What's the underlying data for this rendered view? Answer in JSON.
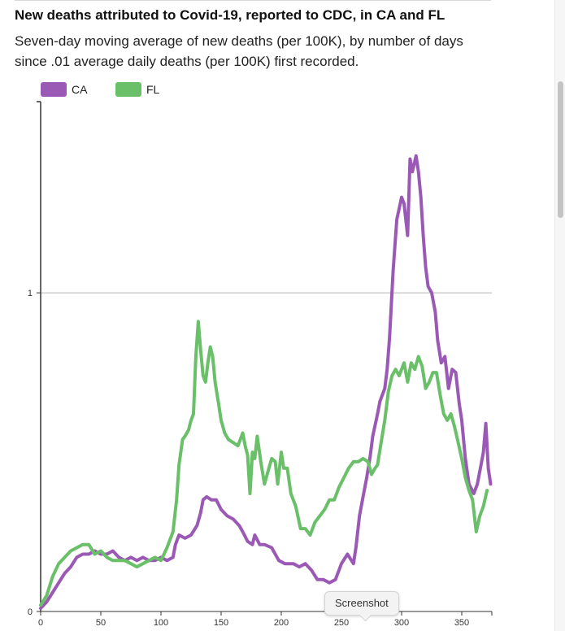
{
  "title": "New deaths attributed to Covid-19, reported to CDC, in CA and FL",
  "subtitle": "Seven-day moving average of new deaths (per 100K), by number of days since .01 average daily deaths (per 100K) first recorded.",
  "tooltip": {
    "label": "Screenshot"
  },
  "colors": {
    "CA": "#9b59b6",
    "FL": "#6abf69",
    "reference_line": "#b5b5b5",
    "axis": "#333333"
  },
  "chart_data": {
    "type": "line",
    "title": "New deaths attributed to Covid-19, reported to CDC, in CA and FL",
    "xlabel": "",
    "ylabel": "",
    "xlim": [
      0,
      375
    ],
    "ylim": [
      0,
      1.6
    ],
    "x_ticks": [
      0,
      50,
      100,
      150,
      200,
      250,
      300,
      350
    ],
    "y_ticks": [
      0,
      1
    ],
    "reference_lines": [
      1
    ],
    "grid": false,
    "legend_position": "top-left",
    "series": [
      {
        "name": "CA",
        "points": [
          [
            0,
            0.01
          ],
          [
            5,
            0.03
          ],
          [
            10,
            0.06
          ],
          [
            15,
            0.09
          ],
          [
            20,
            0.12
          ],
          [
            25,
            0.14
          ],
          [
            30,
            0.17
          ],
          [
            35,
            0.18
          ],
          [
            40,
            0.18
          ],
          [
            45,
            0.19
          ],
          [
            50,
            0.18
          ],
          [
            55,
            0.18
          ],
          [
            60,
            0.19
          ],
          [
            65,
            0.17
          ],
          [
            70,
            0.16
          ],
          [
            75,
            0.17
          ],
          [
            80,
            0.16
          ],
          [
            85,
            0.17
          ],
          [
            90,
            0.16
          ],
          [
            95,
            0.16
          ],
          [
            100,
            0.17
          ],
          [
            105,
            0.16
          ],
          [
            110,
            0.17
          ],
          [
            112,
            0.21
          ],
          [
            115,
            0.24
          ],
          [
            120,
            0.23
          ],
          [
            125,
            0.24
          ],
          [
            130,
            0.27
          ],
          [
            133,
            0.31
          ],
          [
            135,
            0.35
          ],
          [
            138,
            0.36
          ],
          [
            142,
            0.35
          ],
          [
            146,
            0.35
          ],
          [
            150,
            0.32
          ],
          [
            155,
            0.3
          ],
          [
            160,
            0.29
          ],
          [
            165,
            0.27
          ],
          [
            168,
            0.25
          ],
          [
            172,
            0.22
          ],
          [
            176,
            0.21
          ],
          [
            178,
            0.24
          ],
          [
            182,
            0.21
          ],
          [
            186,
            0.21
          ],
          [
            192,
            0.2
          ],
          [
            198,
            0.16
          ],
          [
            203,
            0.15
          ],
          [
            210,
            0.15
          ],
          [
            215,
            0.14
          ],
          [
            220,
            0.15
          ],
          [
            225,
            0.13
          ],
          [
            230,
            0.1
          ],
          [
            235,
            0.1
          ],
          [
            240,
            0.09
          ],
          [
            245,
            0.1
          ],
          [
            250,
            0.15
          ],
          [
            255,
            0.18
          ],
          [
            260,
            0.15
          ],
          [
            262,
            0.2
          ],
          [
            265,
            0.3
          ],
          [
            268,
            0.36
          ],
          [
            271,
            0.42
          ],
          [
            274,
            0.49
          ],
          [
            276,
            0.55
          ],
          [
            280,
            0.62
          ],
          [
            282,
            0.66
          ],
          [
            286,
            0.7
          ],
          [
            288,
            0.76
          ],
          [
            290,
            0.86
          ],
          [
            293,
            1.07
          ],
          [
            296,
            1.23
          ],
          [
            300,
            1.3
          ],
          [
            302,
            1.28
          ],
          [
            305,
            1.18
          ],
          [
            307,
            1.42
          ],
          [
            309,
            1.38
          ],
          [
            312,
            1.43
          ],
          [
            314,
            1.38
          ],
          [
            316,
            1.3
          ],
          [
            318,
            1.18
          ],
          [
            320,
            1.08
          ],
          [
            322,
            1.02
          ],
          [
            325,
            1.0
          ],
          [
            328,
            0.94
          ],
          [
            330,
            0.85
          ],
          [
            333,
            0.78
          ],
          [
            336,
            0.8
          ],
          [
            339,
            0.7
          ],
          [
            342,
            0.76
          ],
          [
            345,
            0.75
          ],
          [
            348,
            0.65
          ],
          [
            350,
            0.6
          ],
          [
            353,
            0.48
          ],
          [
            356,
            0.4
          ],
          [
            360,
            0.37
          ],
          [
            363,
            0.4
          ],
          [
            366,
            0.46
          ],
          [
            368,
            0.5
          ],
          [
            370,
            0.59
          ],
          [
            372,
            0.45
          ],
          [
            374,
            0.4
          ]
        ]
      },
      {
        "name": "FL",
        "points": [
          [
            0,
            0.02
          ],
          [
            5,
            0.05
          ],
          [
            10,
            0.11
          ],
          [
            15,
            0.15
          ],
          [
            20,
            0.17
          ],
          [
            25,
            0.19
          ],
          [
            30,
            0.2
          ],
          [
            35,
            0.21
          ],
          [
            40,
            0.21
          ],
          [
            45,
            0.18
          ],
          [
            50,
            0.19
          ],
          [
            55,
            0.17
          ],
          [
            60,
            0.16
          ],
          [
            65,
            0.16
          ],
          [
            70,
            0.16
          ],
          [
            75,
            0.15
          ],
          [
            80,
            0.14
          ],
          [
            85,
            0.15
          ],
          [
            90,
            0.16
          ],
          [
            95,
            0.17
          ],
          [
            100,
            0.16
          ],
          [
            105,
            0.2
          ],
          [
            110,
            0.25
          ],
          [
            113,
            0.35
          ],
          [
            115,
            0.46
          ],
          [
            118,
            0.54
          ],
          [
            120,
            0.55
          ],
          [
            123,
            0.57
          ],
          [
            125,
            0.6
          ],
          [
            127,
            0.62
          ],
          [
            129,
            0.8
          ],
          [
            131,
            0.91
          ],
          [
            133,
            0.82
          ],
          [
            135,
            0.74
          ],
          [
            137,
            0.72
          ],
          [
            139,
            0.78
          ],
          [
            141,
            0.83
          ],
          [
            143,
            0.8
          ],
          [
            145,
            0.72
          ],
          [
            148,
            0.65
          ],
          [
            150,
            0.6
          ],
          [
            153,
            0.56
          ],
          [
            156,
            0.54
          ],
          [
            160,
            0.53
          ],
          [
            164,
            0.52
          ],
          [
            168,
            0.56
          ],
          [
            170,
            0.52
          ],
          [
            172,
            0.49
          ],
          [
            174,
            0.37
          ],
          [
            176,
            0.5
          ],
          [
            178,
            0.48
          ],
          [
            180,
            0.55
          ],
          [
            183,
            0.47
          ],
          [
            186,
            0.4
          ],
          [
            189,
            0.44
          ],
          [
            192,
            0.48
          ],
          [
            195,
            0.47
          ],
          [
            197,
            0.4
          ],
          [
            200,
            0.5
          ],
          [
            202,
            0.45
          ],
          [
            205,
            0.45
          ],
          [
            208,
            0.37
          ],
          [
            212,
            0.33
          ],
          [
            216,
            0.26
          ],
          [
            220,
            0.26
          ],
          [
            224,
            0.24
          ],
          [
            228,
            0.28
          ],
          [
            232,
            0.3
          ],
          [
            236,
            0.32
          ],
          [
            240,
            0.35
          ],
          [
            244,
            0.35
          ],
          [
            248,
            0.39
          ],
          [
            252,
            0.42
          ],
          [
            256,
            0.45
          ],
          [
            260,
            0.47
          ],
          [
            264,
            0.47
          ],
          [
            268,
            0.48
          ],
          [
            272,
            0.47
          ],
          [
            275,
            0.43
          ],
          [
            278,
            0.45
          ],
          [
            280,
            0.46
          ],
          [
            283,
            0.53
          ],
          [
            286,
            0.6
          ],
          [
            289,
            0.69
          ],
          [
            292,
            0.74
          ],
          [
            295,
            0.76
          ],
          [
            298,
            0.74
          ],
          [
            302,
            0.78
          ],
          [
            305,
            0.72
          ],
          [
            308,
            0.78
          ],
          [
            311,
            0.76
          ],
          [
            314,
            0.8
          ],
          [
            317,
            0.77
          ],
          [
            320,
            0.7
          ],
          [
            323,
            0.72
          ],
          [
            326,
            0.75
          ],
          [
            329,
            0.75
          ],
          [
            332,
            0.68
          ],
          [
            335,
            0.62
          ],
          [
            338,
            0.6
          ],
          [
            341,
            0.62
          ],
          [
            344,
            0.58
          ],
          [
            347,
            0.53
          ],
          [
            350,
            0.48
          ],
          [
            353,
            0.42
          ],
          [
            356,
            0.38
          ],
          [
            359,
            0.35
          ],
          [
            362,
            0.25
          ],
          [
            365,
            0.3
          ],
          [
            368,
            0.33
          ],
          [
            371,
            0.38
          ]
        ]
      }
    ]
  }
}
